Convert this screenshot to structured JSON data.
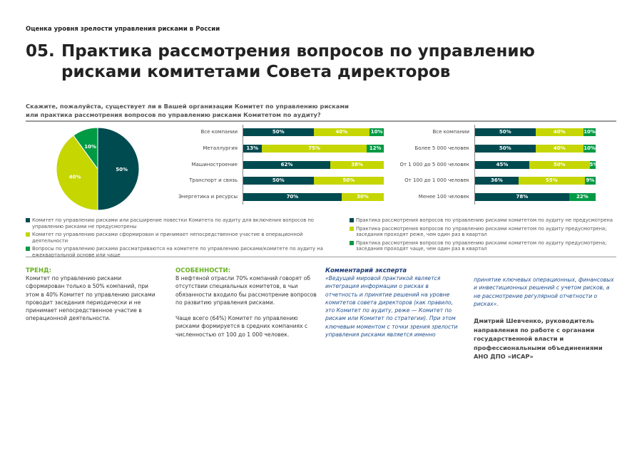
{
  "header": {
    "supertitle": "Оценка уровня зрелости управления рисками в России",
    "number": "05.",
    "title_line1": "Практика рассмотрения вопросов по управлению",
    "title_line2": "рисками комитетами Совета директоров"
  },
  "question": {
    "line1": "Скажите, пожалуйста, существует ли в Вашей организации Комитет по управлению рисками",
    "line2": "или практика рассмотрения вопросов по управлению рисками Комитетом по аудиту?"
  },
  "colors": {
    "dark": "#004b50",
    "lime": "#c5d600",
    "green": "#009a44"
  },
  "chart_data": [
    {
      "type": "pie",
      "values": [
        50,
        40,
        10
      ],
      "labels": [
        "50%",
        "40%",
        "10%"
      ]
    },
    {
      "type": "bar",
      "stacked": true,
      "orientation": "horizontal",
      "categories": [
        "Все компании",
        "Металлургия",
        "Машиностроение",
        "Транспорт и связь",
        "Энергетика и ресурсы"
      ],
      "series": [
        {
          "values": [
            50,
            13,
            62,
            50,
            70
          ]
        },
        {
          "values": [
            40,
            75,
            38,
            50,
            30
          ]
        },
        {
          "values": [
            10,
            12,
            0,
            0,
            0
          ]
        }
      ]
    },
    {
      "type": "bar",
      "stacked": true,
      "orientation": "horizontal",
      "categories": [
        "Все компании",
        "Более 5 000 человек",
        "От 1 000 до 5 000 человек",
        "От 100 до 1 000 человек",
        "Менее 100 человек"
      ],
      "series": [
        {
          "values": [
            50,
            50,
            45,
            36,
            78
          ]
        },
        {
          "values": [
            40,
            40,
            50,
            55,
            0
          ]
        },
        {
          "values": [
            10,
            10,
            5,
            9,
            22
          ]
        }
      ]
    }
  ],
  "legend_left": [
    "Комитет по управлению рисками или расширение повестки Комитета по аудиту для включения вопросов по управлению рисками не предусмотрены",
    "Комитет по управлению рисками сформирован и принимает непосредственное участие в операционной деятельности",
    "Вопросы по управлению рисками рассматриваются на комитете по управлению рисками/комитете по аудиту на ежеквартальной основе или чаще"
  ],
  "legend_right": [
    "Практика рассмотрения вопросов по управлению рисками комитетом по аудиту не предусмотрена",
    "Практика рассмотрения вопросов по управлению рисками комитетом по аудиту предусмотрена; заседания проходят реже, чем один раз в квартал",
    "Практика рассмотрения вопросов по управлению рисками комитетом по аудиту предусмотрена; заседания проходят чаще, чем один раз в квартал"
  ],
  "trend": {
    "heading": "ТРЕНД:",
    "text": "Комитет по управлению рисками сформирован только в 50% компаний, при этом в 40% Комитет по управлению рисками проводит заседания периодически и не принимает непосредственное участие в операционной деятельности."
  },
  "features": {
    "heading": "ОСОБЕННОСТИ:",
    "p1": "В нефтяной отрасли 70% компаний говорят об отсутствии специальных комитетов, в чьи обязанности входило бы рассмотрение вопросов по развитию управления рисками.",
    "p2": "Чаще всего (64%) Комитет по управлению рисками формируется в средних компаниях с численностью от 100 до 1 000 человек."
  },
  "expert": {
    "heading": "Комментарий эксперта",
    "col1": "«Ведущей мировой практикой является интеграция информации о рисках в отчетность и принятие решений на уровне комитетов совета директоров (как правило, это Комитет по аудиту, реже — Комитет по рискам или Комитет по стратегии). При этом ключевым моментом с точки зрения зрелости управления рисками является именно",
    "col2": "принятие ключевых операционных, финансовых и инвестиционных решений с учетом рисков, а не рассмотрение регулярной отчетности о рисках».",
    "author": "Дмитрий Шевченко, руководитель направления по работе с органами государственной власти и профессиональными объединениями АНО ДПО «ИСАР»"
  }
}
